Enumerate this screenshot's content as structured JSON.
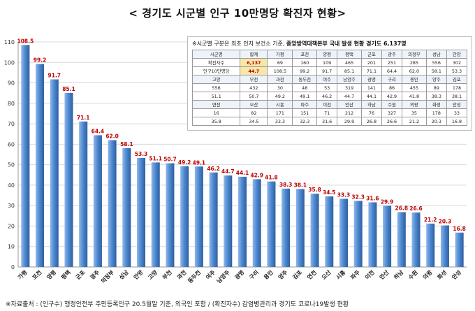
{
  "title": "< 경기도 시군별 인구 10만명당 확진자 현황>",
  "footer": "※자료출처 : (인구수) 행정안전부 주민등록인구 20.5월말 기준, 외국인 포함 / (확진자수) 감염병관리과 경기도 코로나19발생 현황",
  "table": {
    "note_prefix": "※시군별 구분은 최초 인지 보건소 기준, ",
    "note_strong": "중앙방역대책본부 국내 발생 현황 경기도 6,137명",
    "rows": [
      [
        "시군명",
        "합계",
        "가평",
        "포천",
        "양평",
        "평택",
        "군포",
        "광주",
        "의정부",
        "성남",
        "안양"
      ],
      [
        "확진자수",
        "6,137",
        "69",
        "160",
        "109",
        "465",
        "201",
        "251",
        "285",
        "556",
        "302"
      ],
      [
        "인구10만명당",
        "44.7",
        "108.5",
        "99.2",
        "91.7",
        "85.1",
        "71.1",
        "64.4",
        "62.0",
        "58.1",
        "53.3"
      ],
      [
        "고양",
        "부천",
        "과천",
        "동두천",
        "여주",
        "남양주",
        "광명",
        "구리",
        "용인",
        "양주",
        "김포"
      ],
      [
        "556",
        "432",
        "30",
        "48",
        "53",
        "319",
        "141",
        "86",
        "455",
        "89",
        "178"
      ],
      [
        "51.1",
        "50.7",
        "49.2",
        "49.1",
        "46.2",
        "44.7",
        "44.1",
        "42.9",
        "41.8",
        "38.3",
        "38.1"
      ],
      [
        "연천",
        "오산",
        "시흥",
        "파주",
        "이천",
        "안산",
        "하남",
        "수원",
        "의왕",
        "화성",
        "안성"
      ],
      [
        "16",
        "82",
        "171",
        "151",
        "71",
        "212",
        "76",
        "327",
        "35",
        "178",
        "33"
      ],
      [
        "35.8",
        "34.5",
        "33.3",
        "32.3",
        "31.6",
        "29.9",
        "26.8",
        "26.6",
        "21.2",
        "20.3",
        "16.8"
      ]
    ]
  },
  "chart_data": {
    "type": "bar",
    "categories": [
      "가평",
      "포천",
      "양평",
      "평택",
      "군포",
      "광주",
      "의정부",
      "성남",
      "안양",
      "고양",
      "부천",
      "과천",
      "동두천",
      "여주",
      "남양주",
      "광명",
      "구리",
      "용인",
      "양주",
      "김포",
      "연천",
      "오산",
      "시흥",
      "파주",
      "이천",
      "안산",
      "하남",
      "수원",
      "의왕",
      "화성",
      "안성"
    ],
    "values": [
      108.5,
      99.2,
      91.7,
      85.1,
      71.1,
      64.4,
      62.0,
      58.1,
      53.3,
      51.1,
      50.7,
      49.2,
      49.1,
      46.2,
      44.7,
      44.1,
      42.9,
      41.8,
      38.3,
      38.1,
      35.8,
      34.5,
      33.3,
      32.3,
      31.6,
      29.9,
      26.8,
      26.6,
      21.2,
      20.3,
      16.8
    ],
    "value_labels": [
      "108.5",
      "99.2",
      "91.7",
      "85.1",
      "71.1",
      "64.4",
      "62.0",
      "58.1",
      "53.3",
      "51.1",
      "50.7",
      "49.2",
      "49.1",
      "46.2",
      "44.7",
      "44.1",
      "42.9",
      "41.8",
      "38.3",
      "38.1",
      "35.8",
      "34.5",
      "33.3",
      "32.3",
      "31.6",
      "29.9",
      "26.8",
      "26.6",
      "21.2",
      "20.3",
      "16.8"
    ],
    "yticks": [
      0,
      10,
      20,
      30,
      40,
      50,
      60,
      70,
      80,
      90,
      100,
      110
    ],
    "ylim": [
      0,
      110
    ],
    "grid": true,
    "colors": {
      "bar_top": "#8fb7e8",
      "bar_mid": "#4a86d0",
      "bar_bottom": "#2f5f9e",
      "label": "#c00000",
      "grid": "#d9d9d9"
    }
  }
}
